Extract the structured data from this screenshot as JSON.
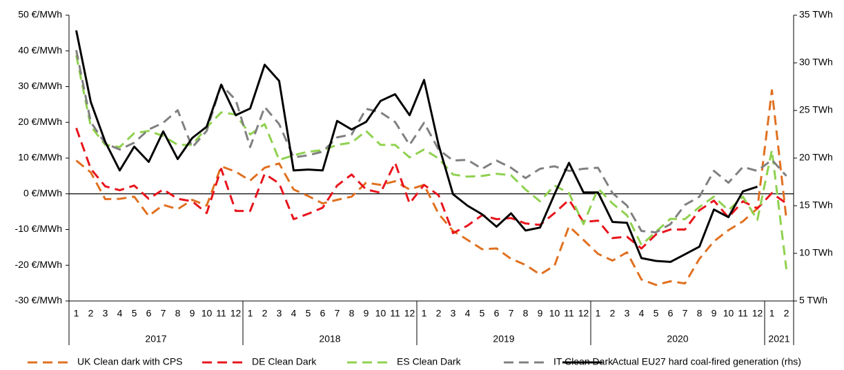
{
  "chart_data": {
    "type": "line",
    "categories": [
      "1",
      "2",
      "3",
      "4",
      "5",
      "6",
      "7",
      "8",
      "9",
      "10",
      "11",
      "12",
      "1",
      "2",
      "3",
      "4",
      "5",
      "6",
      "7",
      "8",
      "9",
      "10",
      "11",
      "12",
      "1",
      "2",
      "3",
      "4",
      "5",
      "6",
      "7",
      "8",
      "9",
      "10",
      "11",
      "12",
      "1",
      "2",
      "3",
      "4",
      "5",
      "6",
      "7",
      "8",
      "9",
      "10",
      "11",
      "12",
      "1",
      "2"
    ],
    "years": [
      "2017",
      "2018",
      "2019",
      "2020",
      "2021"
    ],
    "ylim": [
      -30,
      50
    ],
    "yticks": [
      {
        "value": 50,
        "label": "50 €/MWh"
      },
      {
        "value": 40,
        "label": "40 €/MWh"
      },
      {
        "value": 30,
        "label": "30 €/MWh"
      },
      {
        "value": 20,
        "label": "20 €/MWh"
      },
      {
        "value": 10,
        "label": "10 €/MWh"
      },
      {
        "value": 0,
        "label": "0 €/MWh"
      },
      {
        "value": -10,
        "label": "-10 €/MWh"
      },
      {
        "value": -20,
        "label": "-20 €/MWh"
      },
      {
        "value": -30,
        "label": "-30 €/MWh"
      }
    ],
    "y2lim": [
      5,
      35
    ],
    "y2ticks": [
      {
        "value": 35,
        "label": "35 TWh"
      },
      {
        "value": 30,
        "label": "30 TWh"
      },
      {
        "value": 25,
        "label": "25 TWh"
      },
      {
        "value": 20,
        "label": "20 TWh"
      },
      {
        "value": 15,
        "label": "15 TWh"
      },
      {
        "value": 10,
        "label": "10 TWh"
      },
      {
        "value": 5,
        "label": "5 TWh"
      }
    ],
    "grid": false,
    "legend": "bottom",
    "series": [
      {
        "name": "UK Clean dark with CPS",
        "color": "#e07020",
        "dashed": true,
        "values": [
          9.3,
          6,
          -1.5,
          -1.4,
          -0.8,
          -6.2,
          -3.1,
          -4.3,
          -1.7,
          -3.3,
          7.7,
          6.2,
          3.7,
          7.3,
          8.5,
          1.2,
          -0.6,
          -2.7,
          -1.7,
          -0.8,
          3.1,
          2.5,
          3.5,
          1.2,
          2.5,
          -5.6,
          -10.4,
          -12.9,
          -15.5,
          -15.3,
          -18.2,
          -19.9,
          -22.6,
          -20.1,
          -9.1,
          -12.9,
          -16.8,
          -18.7,
          -16.4,
          -24.0,
          -25.5,
          -24.5,
          -25.1,
          -18.2,
          -13.3,
          -10.2,
          -7.7,
          -4.1,
          29.0,
          -7.1
        ]
      },
      {
        "name": "DE Clean Dark",
        "color": "#e8141c",
        "dashed": true,
        "values": [
          18.4,
          7,
          2.1,
          1.0,
          2.3,
          -1.4,
          1.2,
          -1.4,
          -2.1,
          -5.4,
          7.0,
          -4.8,
          -4.8,
          5.6,
          2.9,
          -7.1,
          -5.6,
          -3.9,
          2.3,
          5.4,
          1.2,
          0.3,
          8.7,
          -2.7,
          2.5,
          -0.4,
          -11.0,
          -8.9,
          -6.0,
          -7.1,
          -6.8,
          -8.3,
          -8.7,
          -5.4,
          -1.7,
          -7.9,
          -7.5,
          -12.4,
          -12.0,
          -15.3,
          -11.4,
          -10.0,
          -10.0,
          -4.6,
          -1.9,
          -6.6,
          -2.1,
          -4.1,
          0.2,
          -2.7
        ]
      },
      {
        "name": "ES Clean Dark",
        "color": "#8fd14f",
        "dashed": true,
        "values": [
          38.8,
          18.9,
          13.7,
          13.1,
          17.0,
          17.6,
          16.2,
          13.7,
          13.7,
          18.6,
          22.8,
          22.2,
          16.6,
          19.5,
          9.5,
          10.8,
          11.8,
          12.2,
          13.7,
          14.3,
          17.6,
          13.7,
          13.7,
          10.2,
          12.4,
          9.9,
          5.4,
          4.8,
          5.0,
          5.6,
          5.2,
          1.2,
          -2.1,
          2.3,
          0.2,
          -8.5,
          1.5,
          -2.7,
          -6.0,
          -14.3,
          -10.6,
          -7.0,
          -7.1,
          -3.7,
          -0.8,
          -4.6,
          -0.8,
          -7.3,
          12.2,
          -21.1
        ]
      },
      {
        "name": "IT Clean Dark",
        "color": "#808080",
        "dashed": true,
        "values": [
          40.2,
          20.1,
          14.1,
          12.4,
          14.3,
          18.0,
          19.9,
          23.4,
          13.0,
          17.6,
          30.5,
          26.3,
          13.1,
          24.3,
          19.5,
          10.2,
          10.8,
          11.8,
          15.8,
          16.6,
          23.8,
          22.8,
          20.1,
          13.7,
          19.9,
          12.4,
          9.3,
          9.5,
          7.0,
          9.3,
          7.3,
          4.4,
          7.0,
          7.7,
          6.4,
          7.0,
          7.3,
          0.2,
          -3.3,
          -10.4,
          -10.8,
          -8.5,
          -3.1,
          -0.8,
          6.4,
          3.1,
          7.5,
          6.4,
          9.5,
          5.0
        ]
      },
      {
        "name": "Actual EU27 hard coal-fired generation (rhs)",
        "color": "#000000",
        "dashed": false,
        "axis": "y2",
        "values": [
          33.4,
          25.9,
          21.7,
          18.7,
          21.2,
          19.6,
          22.8,
          19.9,
          22.1,
          23.3,
          27.7,
          24.5,
          25.2,
          29.8,
          28.1,
          18.7,
          18.8,
          18.7,
          23.9,
          23.0,
          23.8,
          26.0,
          26.7,
          24.5,
          28.2,
          21.4,
          16.2,
          15.0,
          14.1,
          12.8,
          14.2,
          12.4,
          12.7,
          16.2,
          19.5,
          16.4,
          16.4,
          13.3,
          13.2,
          9.5,
          9.2,
          9.1,
          9.9,
          10.7,
          14.6,
          13.8,
          16.5,
          17.0,
          null,
          null
        ]
      }
    ]
  }
}
